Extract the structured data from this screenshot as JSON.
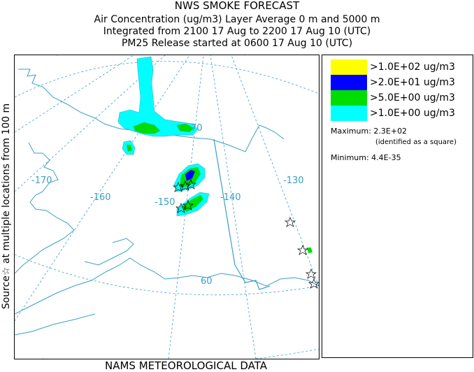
{
  "header": {
    "title": "NWS SMOKE FORECAST",
    "line2": "Air Concentration (ug/m3) Layer Average    0 m and  5000 m",
    "line3": "Integrated from 2100 17 Aug to 2200 17 Aug 10 (UTC)",
    "line4": "PM25 Release started at 0600 17 Aug 10 (UTC)"
  },
  "side_label": "Source☆  at multiple locations   from   100 m",
  "map": {
    "longitude_labels": [
      "-170",
      "-160",
      "-150",
      "-140",
      "-130"
    ],
    "latitude_labels": [
      "70",
      "60"
    ],
    "colors": {
      "water_line": "#39a0c6",
      "graticule": "#39a0c6",
      "border": "#39a0c6"
    }
  },
  "legend": {
    "items": [
      {
        "label": ">1.0E+02 ug/m3",
        "color": "#ffff00"
      },
      {
        "label": ">2.0E+01 ug/m3",
        "color": "#0000ff"
      },
      {
        "label": ">5.0E+00 ug/m3",
        "color": "#00dd00"
      },
      {
        "label": ">1.0E+00 ug/m3",
        "color": "#00ffff"
      }
    ],
    "maximum": "Maximum: 2.3E+02",
    "maximum_note": "(identified as a square)",
    "minimum": "Minimum: 4.4E-35"
  },
  "footer": "NAMS METEOROLOGICAL DATA"
}
